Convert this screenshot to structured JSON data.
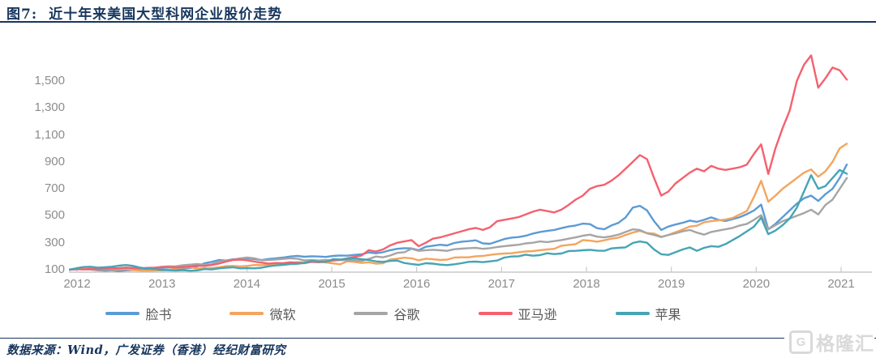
{
  "header": {
    "figure_label": "图7:",
    "title": "近十年来美国大型科网企业股价走势"
  },
  "footer": {
    "source": "数据来源：Wind，广发证券（香港）经纪财富研究",
    "watermark": "格隆汇",
    "watermark_icon": "G"
  },
  "colors": {
    "title_navy": "#17365d",
    "axis_gray": "#c9c9c9",
    "tick_label_gray": "#8c8c8c",
    "legend_text_gray": "#595959",
    "watermark_gray": "#d9d9d9"
  },
  "chart_data": {
    "type": "line",
    "title": "近十年来美国大型科网企业股价走势",
    "xlabel": "",
    "ylabel": "",
    "x_ticks": [
      "2012",
      "2013",
      "2014",
      "2015",
      "2016",
      "2017",
      "2018",
      "2019",
      "2020",
      "2021"
    ],
    "y_ticks": [
      100,
      300,
      500,
      700,
      900,
      1100,
      1300,
      1500
    ],
    "ylim": [
      100,
      1720
    ],
    "x_range_months": "2012-01 to 2021-02, monthly points, indexed to 100",
    "grid": false,
    "legend_position": "bottom",
    "series": [
      {
        "name": "facebook",
        "label": "脸书",
        "color": "#5b9bd5",
        "values": [
          100,
          103,
          106,
          102,
          96,
          92,
          95,
          90,
          95,
          98,
          96,
          99,
          101,
          104,
          102,
          105,
          110,
          113,
          125,
          148,
          158,
          172,
          168,
          178,
          175,
          185,
          178,
          172,
          180,
          184,
          190,
          198,
          202,
          196,
          200,
          198,
          195,
          202,
          206,
          204,
          210,
          214,
          228,
          222,
          230,
          245,
          255,
          260,
          258,
          245,
          270,
          278,
          285,
          280,
          298,
          308,
          312,
          318,
          295,
          292,
          310,
          328,
          338,
          342,
          352,
          368,
          380,
          388,
          395,
          408,
          420,
          428,
          442,
          438,
          408,
          400,
          428,
          448,
          488,
          560,
          574,
          540,
          460,
          395,
          420,
          435,
          448,
          465,
          455,
          470,
          488,
          470,
          462,
          475,
          490,
          512,
          540,
          583,
          400,
          440,
          490,
          540,
          590,
          630,
          650,
          610,
          660,
          700,
          780,
          880
        ]
      },
      {
        "name": "microsoft",
        "label": "微软",
        "color": "#f4a55e",
        "values": [
          100,
          106,
          108,
          107,
          98,
          102,
          99,
          103,
          104,
          98,
          93,
          92,
          94,
          96,
          98,
          110,
          116,
          118,
          108,
          112,
          112,
          118,
          127,
          128,
          125,
          128,
          135,
          134,
          136,
          139,
          143,
          150,
          155,
          156,
          162,
          158,
          154,
          147,
          140,
          162,
          158,
          150,
          155,
          145,
          148,
          175,
          182,
          189,
          185,
          170,
          182,
          178,
          172,
          175,
          190,
          192,
          192,
          200,
          202,
          210,
          216,
          220,
          222,
          230,
          235,
          238,
          245,
          250,
          255,
          278,
          284,
          290,
          320,
          316,
          308,
          318,
          330,
          338,
          358,
          376,
          388,
          372,
          368,
          344,
          358,
          378,
          398,
          420,
          426,
          452,
          460,
          466,
          472,
          484,
          510,
          535,
          640,
          760,
          604,
          650,
          700,
          740,
          780,
          820,
          844,
          790,
          830,
          900,
          1000,
          1035
        ]
      },
      {
        "name": "google",
        "label": "谷歌",
        "color": "#a5a5a5",
        "values": [
          100,
          105,
          103,
          101,
          97,
          99,
          103,
          109,
          115,
          110,
          106,
          112,
          114,
          122,
          125,
          126,
          133,
          138,
          142,
          136,
          140,
          160,
          166,
          176,
          185,
          190,
          185,
          170,
          172,
          176,
          180,
          185,
          182,
          170,
          172,
          168,
          172,
          168,
          172,
          170,
          168,
          165,
          180,
          198,
          192,
          205,
          225,
          230,
          255,
          240,
          245,
          248,
          244,
          240,
          252,
          256,
          260,
          262,
          255,
          260,
          268,
          275,
          280,
          285,
          295,
          300,
          310,
          305,
          312,
          320,
          330,
          340,
          352,
          360,
          345,
          340,
          348,
          360,
          380,
          400,
          395,
          370,
          358,
          342,
          358,
          370,
          385,
          395,
          375,
          360,
          380,
          390,
          400,
          410,
          428,
          440,
          470,
          505,
          400,
          430,
          460,
          480,
          500,
          520,
          545,
          510,
          580,
          620,
          700,
          780
        ]
      },
      {
        "name": "amazon",
        "label": "亚马逊",
        "color": "#f4616e",
        "values": [
          100,
          104,
          102,
          106,
          103,
          108,
          110,
          112,
          115,
          113,
          110,
          114,
          115,
          118,
          120,
          116,
          120,
          124,
          130,
          128,
          135,
          145,
          160,
          172,
          175,
          170,
          160,
          152,
          145,
          150,
          148,
          155,
          152,
          148,
          158,
          155,
          160,
          168,
          175,
          185,
          195,
          205,
          245,
          235,
          250,
          280,
          300,
          310,
          320,
          275,
          300,
          330,
          340,
          355,
          370,
          385,
          400,
          410,
          395,
          415,
          460,
          470,
          480,
          490,
          510,
          530,
          545,
          535,
          525,
          545,
          580,
          620,
          650,
          700,
          720,
          730,
          760,
          800,
          850,
          900,
          950,
          920,
          780,
          650,
          680,
          740,
          780,
          820,
          850,
          830,
          870,
          850,
          840,
          850,
          860,
          880,
          960,
          1030,
          810,
          1000,
          1150,
          1280,
          1500,
          1620,
          1690,
          1450,
          1520,
          1600,
          1580,
          1510
        ]
      },
      {
        "name": "apple",
        "label": "苹果",
        "color": "#45a5b5",
        "values": [
          100,
          110,
          120,
          122,
          115,
          118,
          122,
          130,
          135,
          128,
          115,
          108,
          105,
          98,
          96,
          94,
          97,
          92,
          95,
          105,
          102,
          110,
          115,
          118,
          110,
          112,
          110,
          115,
          125,
          132,
          136,
          142,
          144,
          150,
          165,
          160,
          158,
          178,
          176,
          180,
          184,
          178,
          172,
          162,
          158,
          165,
          168,
          150,
          142,
          136,
          148,
          145,
          138,
          134,
          140,
          148,
          158,
          160,
          156,
          162,
          168,
          190,
          198,
          200,
          212,
          204,
          208,
          222,
          216,
          220,
          238,
          240,
          244,
          248,
          242,
          240,
          258,
          262,
          266,
          298,
          310,
          300,
          250,
          215,
          210,
          230,
          250,
          265,
          240,
          262,
          275,
          270,
          290,
          320,
          350,
          385,
          420,
          487,
          364,
          390,
          430,
          480,
          560,
          680,
          802,
          700,
          720,
          780,
          840,
          812
        ]
      }
    ]
  }
}
